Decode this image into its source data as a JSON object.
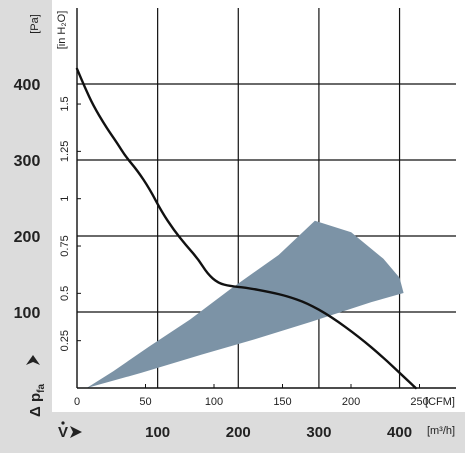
{
  "chart_data": {
    "type": "line",
    "y_primary": {
      "unit": "[Pa]",
      "ticks": [
        {
          "value": 100,
          "label": "100"
        },
        {
          "value": 200,
          "label": "200"
        },
        {
          "value": 300,
          "label": "300"
        },
        {
          "value": 400,
          "label": "400"
        }
      ],
      "range": [
        0,
        400
      ]
    },
    "y_secondary": {
      "unit": "[in H₂O]",
      "ticks": [
        {
          "value": 0.25,
          "label": "0.25"
        },
        {
          "value": 0.5,
          "label": "0.5"
        },
        {
          "value": 0.75,
          "label": "0.75"
        },
        {
          "value": 1,
          "label": "1"
        },
        {
          "value": 1.25,
          "label": "1.25"
        },
        {
          "value": 1.5,
          "label": "1.5"
        }
      ]
    },
    "x_cfm": {
      "unit": "[CFM]",
      "ticks": [
        {
          "value": 0,
          "label": "0"
        },
        {
          "value": 50,
          "label": "50"
        },
        {
          "value": 100,
          "label": "100"
        },
        {
          "value": 150,
          "label": "150"
        },
        {
          "value": 200,
          "label": "200"
        },
        {
          "value": 250,
          "label": "250"
        }
      ]
    },
    "x_m3h": {
      "unit": "[m³/h]",
      "ticks": [
        {
          "value": 100,
          "label": "100"
        },
        {
          "value": 200,
          "label": "200"
        },
        {
          "value": 300,
          "label": "300"
        },
        {
          "value": 400,
          "label": "400"
        }
      ],
      "range": [
        0,
        470
      ]
    },
    "y_axis_symbol": {
      "main": "Δ p",
      "sub": "fa"
    },
    "x_axis_symbol": "V",
    "grid": true,
    "curve": {
      "points": [
        [
          0,
          420
        ],
        [
          10,
          395
        ],
        [
          20,
          372
        ],
        [
          35,
          345
        ],
        [
          50,
          322
        ],
        [
          60,
          305
        ],
        [
          75,
          286
        ],
        [
          90,
          262
        ],
        [
          105,
          232
        ],
        [
          120,
          208
        ],
        [
          135,
          188
        ],
        [
          150,
          170
        ],
        [
          162,
          150
        ],
        [
          175,
          138
        ],
        [
          190,
          134
        ],
        [
          210,
          132
        ],
        [
          240,
          126
        ],
        [
          260,
          121
        ],
        [
          285,
          112
        ],
        [
          315,
          94
        ],
        [
          350,
          67
        ],
        [
          380,
          40
        ],
        [
          405,
          15
        ],
        [
          420,
          0
        ]
      ]
    },
    "operating_region": {
      "color": "#7c93a6",
      "points": [
        [
          12,
          0
        ],
        [
          80,
          20
        ],
        [
          155,
          44
        ],
        [
          220,
          64
        ],
        [
          290,
          87
        ],
        [
          365,
          113
        ],
        [
          405,
          125
        ],
        [
          400,
          145
        ],
        [
          380,
          170
        ],
        [
          340,
          205
        ],
        [
          295,
          220
        ],
        [
          250,
          175
        ],
        [
          190,
          130
        ],
        [
          140,
          90
        ],
        [
          90,
          55
        ],
        [
          45,
          22
        ],
        [
          12,
          0
        ]
      ]
    },
    "curve_color": "#111111"
  }
}
